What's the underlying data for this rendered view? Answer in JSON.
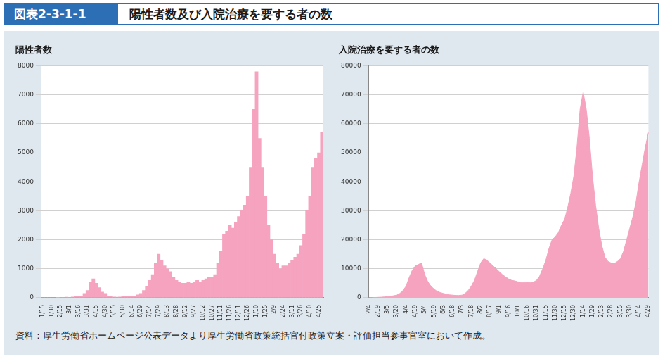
{
  "header": {
    "figure_number": "図表2-3-1-1",
    "title": "陽性者数及び入院治療を要する者の数"
  },
  "source": "資料：厚生労働省ホームページ公表データより厚生労働省政策統括官付政策立案・評価担当参事官室において作成。",
  "chart_data": [
    {
      "type": "bar",
      "title": "陽性者数",
      "categories": [
        "1/15",
        null,
        null,
        "1/30",
        null,
        null,
        "2/15",
        null,
        null,
        "3/1",
        null,
        null,
        "3/16",
        null,
        null,
        "3/31",
        null,
        null,
        "4/15",
        null,
        null,
        "4/30",
        null,
        null,
        "5/15",
        null,
        null,
        "5/30",
        null,
        null,
        "6/14",
        null,
        null,
        "6/29",
        null,
        null,
        "7/14",
        null,
        null,
        "7/29",
        null,
        null,
        "8/13",
        null,
        null,
        "8/28",
        null,
        null,
        "9/12",
        null,
        null,
        "9/27",
        null,
        null,
        "10/12",
        null,
        null,
        "10/27",
        null,
        null,
        "11/11",
        null,
        null,
        "11/26",
        null,
        null,
        "12/11",
        null,
        null,
        "12/26",
        null,
        null,
        "1/10",
        null,
        null,
        "1/25",
        null,
        null,
        "2/9",
        null,
        null,
        "2/24",
        null,
        null,
        "3/11",
        null,
        null,
        "3/26",
        null,
        null,
        "4/10",
        null,
        null,
        "4/25",
        null
      ],
      "values": [
        0,
        0,
        0,
        0,
        0,
        5,
        10,
        15,
        20,
        15,
        30,
        40,
        40,
        60,
        150,
        250,
        550,
        650,
        500,
        350,
        200,
        150,
        60,
        40,
        30,
        20,
        30,
        40,
        45,
        50,
        60,
        60,
        100,
        150,
        250,
        400,
        600,
        800,
        1200,
        1500,
        1300,
        1100,
        1000,
        900,
        700,
        600,
        550,
        500,
        500,
        550,
        500,
        550,
        600,
        550,
        600,
        650,
        700,
        700,
        800,
        1200,
        1600,
        2200,
        2300,
        2500,
        2400,
        2600,
        2800,
        3000,
        3200,
        3500,
        4500,
        6500,
        7800,
        5500,
        4500,
        3500,
        2500,
        2000,
        1500,
        1200,
        1000,
        1100,
        1100,
        1200,
        1300,
        1400,
        1500,
        1800,
        2200,
        3000,
        3500,
        4500,
        4800,
        5000,
        5700
      ],
      "color": "#f5a3bf",
      "ylim": [
        0,
        8000
      ],
      "yticks": [
        0,
        1000,
        2000,
        3000,
        4000,
        5000,
        6000,
        7000,
        8000
      ],
      "grid": true
    },
    {
      "type": "area",
      "title": "入院治療を要する者の数",
      "categories": [
        "2/4",
        null,
        null,
        "2/19",
        null,
        null,
        "3/5",
        null,
        null,
        "3/20",
        null,
        null,
        "4/4",
        null,
        null,
        "4/19",
        null,
        null,
        "5/4",
        null,
        null,
        "5/19",
        null,
        null,
        "6/3",
        null,
        null,
        "6/18",
        null,
        null,
        "7/3",
        null,
        null,
        "7/18",
        null,
        null,
        "8/2",
        null,
        null,
        "8/17",
        null,
        null,
        "9/1",
        null,
        null,
        "9/16",
        null,
        null,
        "10/1",
        null,
        null,
        "10/16",
        null,
        null,
        "10/31",
        null,
        null,
        "11/15",
        null,
        null,
        "11/30",
        null,
        null,
        "12/15",
        null,
        null,
        "12/30",
        null,
        null,
        "1/14",
        null,
        null,
        "1/29",
        null,
        null,
        "2/13",
        null,
        null,
        "2/28",
        null,
        null,
        "3/15",
        null,
        null,
        "3/30",
        null,
        null,
        "4/14",
        null,
        null,
        "4/29"
      ],
      "values": [
        0,
        50,
        100,
        150,
        200,
        300,
        400,
        500,
        700,
        900,
        1500,
        2500,
        4000,
        7000,
        9500,
        11000,
        11500,
        12000,
        8000,
        5500,
        4000,
        3000,
        2200,
        1800,
        1500,
        1200,
        1000,
        900,
        800,
        800,
        900,
        1500,
        2500,
        4000,
        6000,
        9000,
        12000,
        13500,
        13000,
        12000,
        11000,
        10000,
        9000,
        8000,
        7200,
        6500,
        6000,
        5800,
        5500,
        5300,
        5300,
        5200,
        5300,
        5400,
        6000,
        7500,
        10000,
        13000,
        17000,
        20000,
        21000,
        22500,
        25000,
        27000,
        31000,
        36000,
        42000,
        52000,
        65000,
        71000,
        65000,
        55000,
        42000,
        32000,
        24000,
        18000,
        14000,
        12500,
        12000,
        11800,
        12500,
        13500,
        16000,
        20000,
        24000,
        28000,
        33000,
        40000,
        46000,
        52000,
        57000
      ],
      "color": "#f5a3bf",
      "ylim": [
        0,
        80000
      ],
      "yticks": [
        0,
        10000,
        20000,
        30000,
        40000,
        50000,
        60000,
        70000,
        80000
      ],
      "grid": true
    }
  ]
}
